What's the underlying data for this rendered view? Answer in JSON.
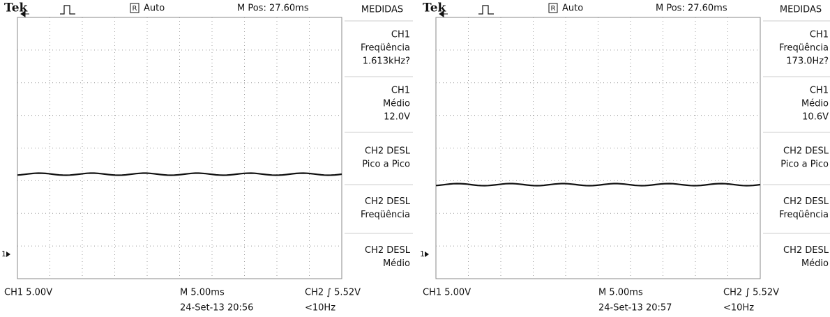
{
  "screens": [
    {
      "header": {
        "brand": "Tek",
        "run_indicator": "R",
        "trigger_mode": "Auto",
        "position": "M Pos: 27.60ms"
      },
      "measurements": {
        "title": "MEDIDAS",
        "items": [
          [
            "CH1",
            "Freqüência",
            "1.613kHz?"
          ],
          [
            "CH1",
            "Médio",
            "12.0V"
          ],
          [
            "CH2 DESL",
            "Pico a Pico"
          ],
          [
            "CH2 DESL",
            "Freqüência"
          ],
          [
            "CH2 DESL",
            "Médio"
          ]
        ]
      },
      "ground_marker": "1",
      "footer": {
        "channel": "CH1  5.00V",
        "timebase": "M 5.00ms",
        "trigger": "CH2 ∫ 5.52V",
        "date": "24-Set-13 20:56",
        "trigger_freq": "<10Hz"
      }
    },
    {
      "header": {
        "brand": "Tek",
        "run_indicator": "R",
        "trigger_mode": "Auto",
        "position": "M Pos: 27.60ms"
      },
      "measurements": {
        "title": "MEDIDAS",
        "items": [
          [
            "CH1",
            "Freqüência",
            "173.0Hz?"
          ],
          [
            "CH1",
            "Médio",
            "10.6V"
          ],
          [
            "CH2 DESL",
            "Pico a Pico"
          ],
          [
            "CH2 DESL",
            "Freqüência"
          ],
          [
            "CH2 DESL",
            "Médio"
          ]
        ]
      },
      "ground_marker": "1",
      "footer": {
        "channel": "CH1  5.00V",
        "timebase": "M 5.00ms",
        "trigger": "CH2 ∫ 5.52V",
        "date": "24-Set-13 20:57",
        "trigger_freq": "<10Hz"
      }
    }
  ]
}
